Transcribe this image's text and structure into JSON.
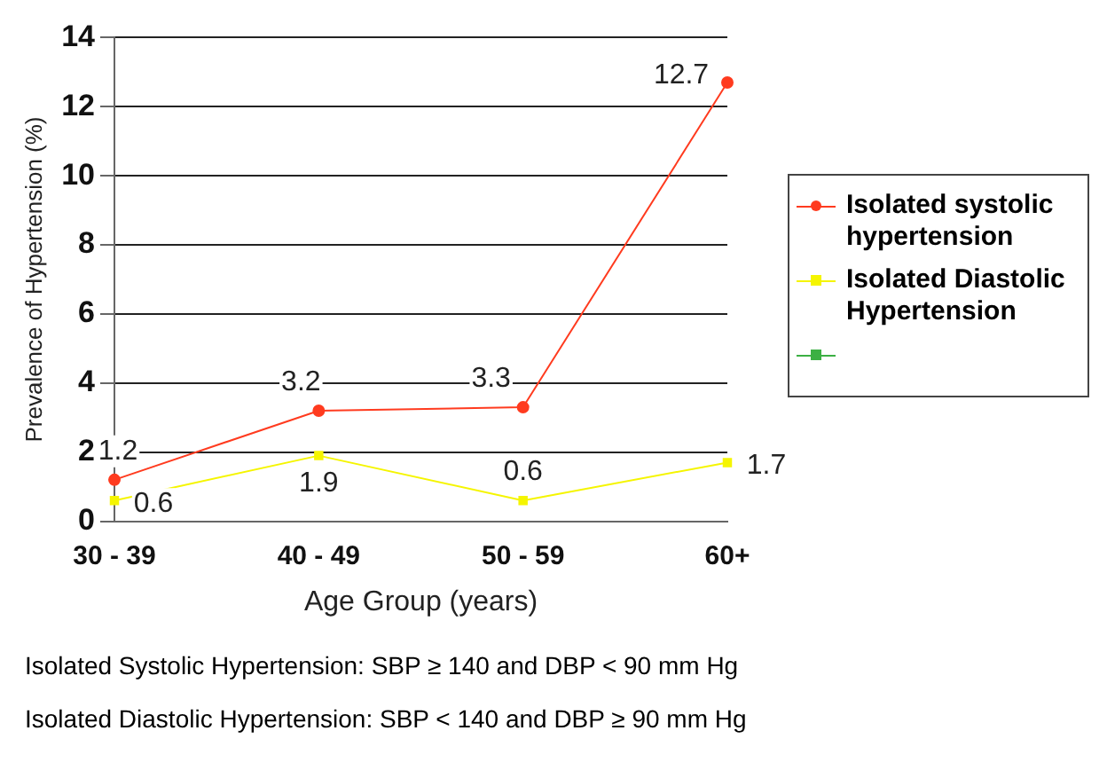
{
  "chart_data": {
    "type": "line",
    "ylabel": "Prevalence of Hypertension (%)",
    "xlabel": "Age Group (years)",
    "categories": [
      "30 - 39",
      "40 - 49",
      "50 - 59",
      "60+"
    ],
    "series": [
      {
        "name": "Isolated systolic hypertension",
        "color": "#ff3b1f",
        "marker": "circle",
        "values": [
          1.2,
          3.2,
          3.3,
          12.7
        ]
      },
      {
        "name": "Isolated Diastolic Hypertension",
        "color": "#f5f500",
        "marker": "square",
        "values": [
          0.6,
          1.9,
          0.6,
          1.7
        ]
      },
      {
        "color": "#3cb043",
        "marker": "triangle",
        "values": [
          null,
          null,
          null,
          null
        ]
      }
    ],
    "ylim": [
      0,
      14
    ],
    "yticks": [
      0,
      2,
      4,
      6,
      8,
      10,
      12,
      14
    ],
    "grid": "y",
    "legend": "right",
    "data_labels": true,
    "annotations": [
      "Isolated Systolic Hypertension: SBP ≥ 140 and DBP < 90 mm Hg",
      "Isolated Diastolic Hypertension: SBP < 140 and DBP ≥ 90 mm Hg"
    ]
  }
}
